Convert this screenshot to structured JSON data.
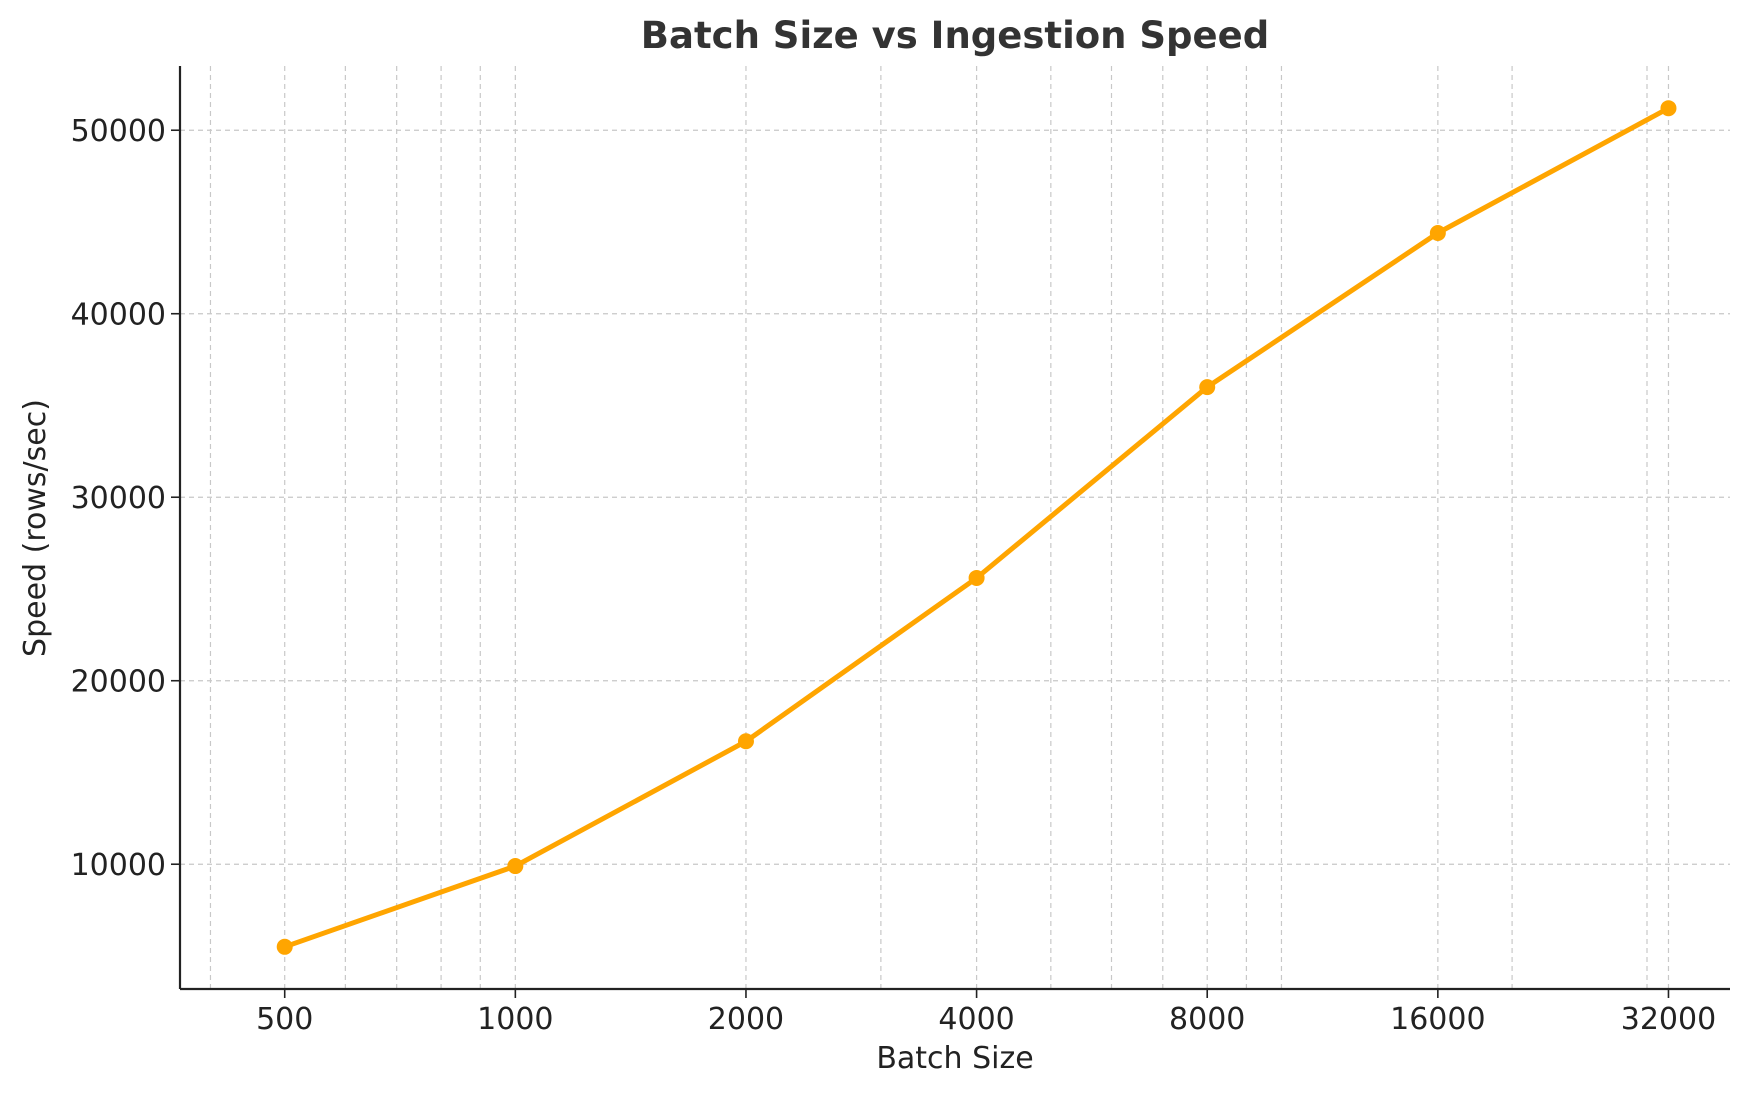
{
  "chart_data": {
    "type": "line",
    "title": "Batch Size vs Ingestion Speed",
    "xlabel": "Batch Size",
    "ylabel": "Speed (rows/sec)",
    "x_scale": "log2",
    "x": [
      500,
      1000,
      2000,
      4000,
      8000,
      16000,
      32000
    ],
    "x_tick_labels": [
      "500",
      "1000",
      "2000",
      "4000",
      "8000",
      "16000",
      "32000"
    ],
    "y_ticks": [
      10000,
      20000,
      30000,
      40000,
      50000
    ],
    "y_tick_labels": [
      "10000",
      "20000",
      "30000",
      "40000",
      "50000"
    ],
    "xlim": [
      365,
      38500
    ],
    "ylim": [
      3200,
      53500
    ],
    "grid": true,
    "grid_style": "dashed",
    "legend": "none",
    "series": [
      {
        "values": [
          5500,
          9900,
          16700,
          25600,
          36000,
          44400,
          51200
        ],
        "color": "#FFA500",
        "marker": "circle"
      }
    ]
  }
}
